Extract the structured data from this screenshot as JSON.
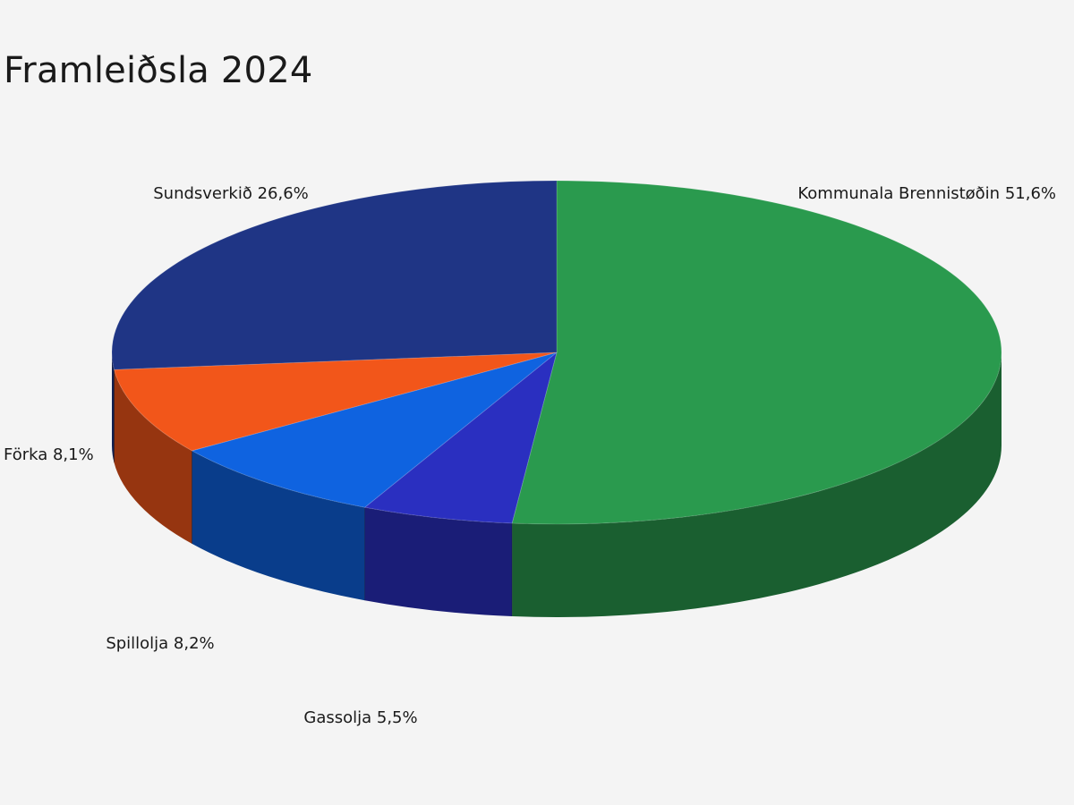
{
  "colors": {
    "background": "#f4f4f4",
    "Kommunala Brennistøðin": "#2a9a4e",
    "Gassolja": "#2a2fc0",
    "Spillolja": "#0f63e0",
    "Förka": "#f2561a",
    "Sundsverkið": "#1f3585"
  },
  "chart_data": {
    "type": "pie",
    "title": "Framleiðsla 2024",
    "style": "3d",
    "start_angle_deg": -90,
    "direction": "clockwise",
    "slices": [
      {
        "name": "Kommunala Brennistøðin",
        "value": 51.6,
        "label": "Kommunala Brennistøðin 51,6%",
        "color": "#2a9a4e"
      },
      {
        "name": "Gassolja",
        "value": 5.5,
        "label": "Gassolja 5,5%",
        "color": "#2a2fc0"
      },
      {
        "name": "Spillolja",
        "value": 8.2,
        "label": "Spillolja 8,2%",
        "color": "#0f63e0"
      },
      {
        "name": "Förka",
        "value": 8.1,
        "label": "Förka 8,1%",
        "color": "#f2561a"
      },
      {
        "name": "Sundsverkið",
        "value": 26.6,
        "label": "Sundsverkið 26,6%",
        "color": "#1f3585"
      }
    ]
  }
}
